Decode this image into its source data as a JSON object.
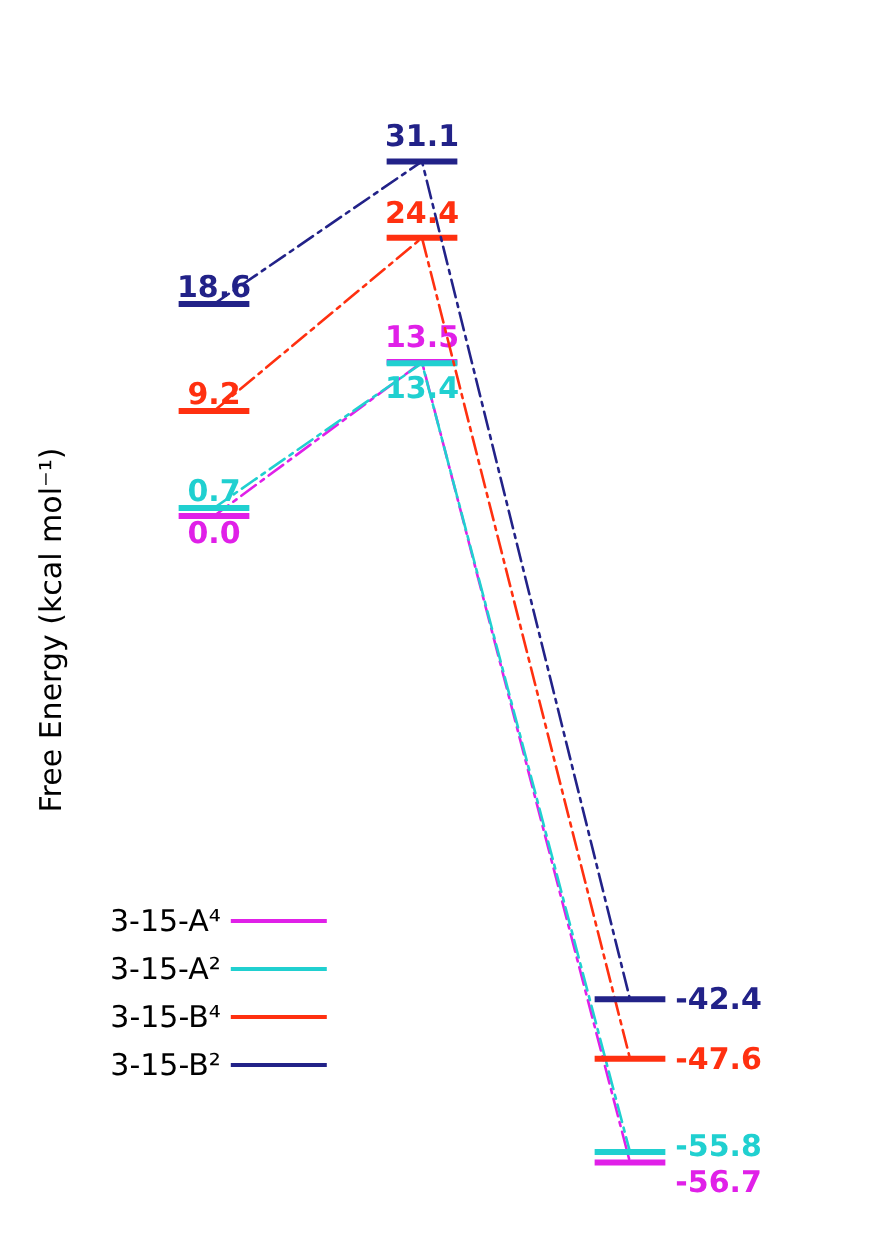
{
  "chart_data": {
    "type": "line",
    "ylabel": "Free Energy (kcal mol⁻¹)",
    "categories": [
      null,
      null,
      null
    ],
    "series": [
      {
        "name": "3-15-A⁴",
        "color": "#e020e8",
        "values": [
          0.0,
          13.5,
          -56.7
        ],
        "value_labels": [
          "0.0",
          "13.5",
          "-56.7"
        ]
      },
      {
        "name": "3-15-A²",
        "color": "#20d0d0",
        "values": [
          0.7,
          13.4,
          -55.8
        ],
        "value_labels": [
          "0.7",
          "13.4",
          "-55.8"
        ]
      },
      {
        "name": "3-15-B⁴",
        "color": "#ff3010",
        "values": [
          9.2,
          24.4,
          -47.6
        ],
        "value_labels": [
          "9.2",
          "24.4",
          "-47.6"
        ]
      },
      {
        "name": "3-15-B²",
        "color": "#222288",
        "values": [
          18.6,
          31.1,
          -42.4
        ],
        "value_labels": [
          "18.6",
          "31.1",
          "-42.4"
        ]
      }
    ],
    "legend": "bottom left",
    "grid": false,
    "line_style": "dashed"
  }
}
